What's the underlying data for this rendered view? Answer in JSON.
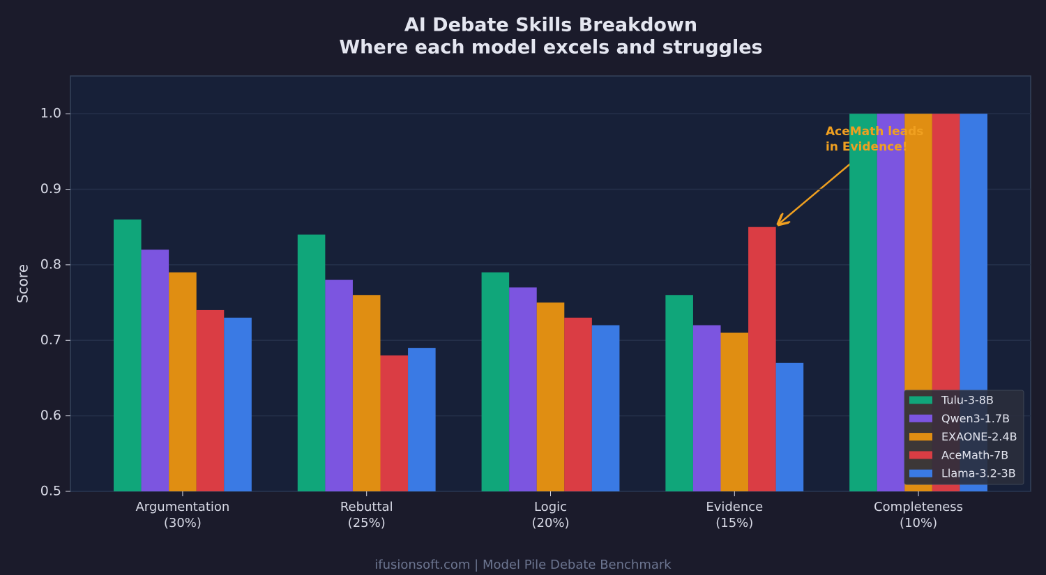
{
  "chart_data": {
    "type": "bar",
    "title": "AI Debate Skills Breakdown",
    "subtitle": "Where each model excels and struggles",
    "y_label": "Score",
    "footer": "ifusionsoft.com  |  Model Pile Debate Benchmark",
    "annotation": "AceMath leads\nin Evidence!",
    "categories": [
      "Argumentation\n(30%)",
      "Rebuttal\n(25%)",
      "Logic\n(20%)",
      "Evidence\n(15%)",
      "Completeness\n(10%)"
    ],
    "series": [
      {
        "name": "Tulu-3-8B",
        "color": "#10a67a",
        "values": [
          0.86,
          0.84,
          0.79,
          0.76,
          1.0
        ]
      },
      {
        "name": "Qwen3-1.7B",
        "color": "#7c55e0",
        "values": [
          0.82,
          0.78,
          0.77,
          0.72,
          1.0
        ]
      },
      {
        "name": "EXAONE-2.4B",
        "color": "#e08e12",
        "values": [
          0.79,
          0.76,
          0.75,
          0.71,
          1.0
        ]
      },
      {
        "name": "AceMath-7B",
        "color": "#da3d44",
        "values": [
          0.74,
          0.68,
          0.73,
          0.85,
          1.0
        ]
      },
      {
        "name": "Llama-3.2-3B",
        "color": "#3a7ae4",
        "values": [
          0.73,
          0.69,
          0.72,
          0.67,
          1.0
        ]
      }
    ],
    "ylim": [
      0.5,
      1.05
    ],
    "yticks": [
      0.5,
      0.6,
      0.7,
      0.8,
      0.9,
      {
        "value": 1,
        "label": "1.0"
      }
    ],
    "grid": true,
    "legend": "lower right"
  }
}
